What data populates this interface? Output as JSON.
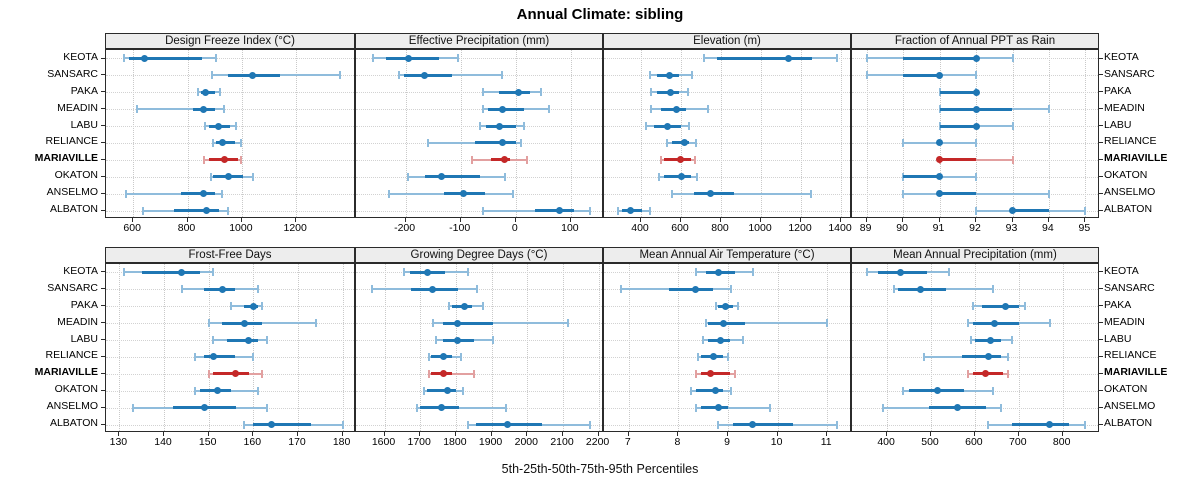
{
  "colors": {
    "blue": "#1f77b4",
    "blue_light": "#8fbcdc",
    "red": "#c42828",
    "red_light": "#e2a0a0",
    "strip_bg": "#ededed",
    "grid": "#c9c9c9",
    "border": "#2b2b2b"
  },
  "chart_data": {
    "type": "dotplot",
    "title": "Annual Climate: sibling",
    "caption": "5th-25th-50th-75th-95th Percentiles",
    "percentiles": [
      5,
      25,
      50,
      75,
      95
    ],
    "legend_position": "none",
    "grid": "dotted",
    "stations": [
      "KEOTA",
      "SANSARC",
      "PAKA",
      "MEADIN",
      "LABU",
      "RELIANCE",
      "MARIAVILLE",
      "OKATON",
      "ANSELMO",
      "ALBATON"
    ],
    "highlight_station": "MARIAVILLE",
    "panels": [
      {
        "title": "Design Freeze Index (°C)",
        "ticks": [
          600,
          800,
          1000,
          1200
        ],
        "xlim": [
          500,
          1420
        ],
        "values": [
          [
            565,
            585,
            640,
            855,
            905
          ],
          [
            890,
            950,
            1040,
            1140,
            1360
          ],
          [
            840,
            850,
            865,
            900,
            920
          ],
          [
            615,
            820,
            860,
            900,
            935
          ],
          [
            865,
            880,
            915,
            955,
            980
          ],
          [
            895,
            905,
            930,
            975,
            995
          ],
          [
            860,
            880,
            935,
            985,
            995
          ],
          [
            885,
            895,
            950,
            1005,
            1040
          ],
          [
            575,
            775,
            860,
            900,
            925
          ],
          [
            635,
            750,
            870,
            915,
            950
          ]
        ]
      },
      {
        "title": "Effective Precipitation (mm)",
        "ticks": [
          -200,
          -100,
          0,
          100
        ],
        "xlim": [
          -290,
          160
        ],
        "values": [
          [
            -260,
            -235,
            -195,
            -140,
            -105
          ],
          [
            -212,
            -203,
            -165,
            -115,
            -25
          ],
          [
            -60,
            -30,
            5,
            25,
            45
          ],
          [
            -60,
            -50,
            -25,
            15,
            60
          ],
          [
            -65,
            -55,
            -30,
            0,
            15
          ],
          [
            -160,
            -75,
            -25,
            0,
            10
          ],
          [
            -80,
            -45,
            -20,
            -10,
            20
          ],
          [
            -195,
            -165,
            -135,
            -65,
            -20
          ],
          [
            -230,
            -130,
            -95,
            -55,
            -5
          ],
          [
            -60,
            35,
            80,
            105,
            135
          ]
        ]
      },
      {
        "title": "Elevation (m)",
        "ticks": [
          400,
          600,
          800,
          1000,
          1200,
          1400
        ],
        "xlim": [
          215,
          1455
        ],
        "values": [
          [
            715,
            780,
            1135,
            1255,
            1380
          ],
          [
            445,
            480,
            540,
            590,
            655
          ],
          [
            450,
            480,
            545,
            590,
            635
          ],
          [
            450,
            500,
            575,
            625,
            735
          ],
          [
            425,
            465,
            530,
            600,
            640
          ],
          [
            530,
            555,
            615,
            640,
            675
          ],
          [
            500,
            515,
            595,
            650,
            670
          ],
          [
            490,
            515,
            600,
            650,
            680
          ],
          [
            555,
            665,
            745,
            865,
            1250
          ],
          [
            285,
            305,
            345,
            405,
            445
          ]
        ]
      },
      {
        "title": "Fraction of Annual PPT as Rain",
        "ticks": [
          89,
          90,
          91,
          92,
          93,
          94,
          95
        ],
        "xlim": [
          88.6,
          95.4
        ],
        "values": [
          [
            89,
            90,
            92,
            92,
            93
          ],
          [
            89,
            90,
            91,
            91,
            92
          ],
          [
            91,
            91,
            92,
            92,
            92
          ],
          [
            91,
            91,
            92,
            93,
            94
          ],
          [
            91,
            91,
            92,
            92,
            93
          ],
          [
            90,
            91,
            91,
            91,
            92
          ],
          [
            91,
            91,
            91,
            92,
            93
          ],
          [
            90,
            90,
            91,
            91,
            92
          ],
          [
            90,
            91,
            91,
            92,
            94
          ],
          [
            92,
            93,
            93,
            94,
            95
          ]
        ]
      },
      {
        "title": "Frost-Free Days",
        "ticks": [
          130,
          140,
          150,
          160,
          170,
          180
        ],
        "xlim": [
          127,
          183
        ],
        "values": [
          [
            131,
            135,
            144,
            148,
            151
          ],
          [
            144,
            149,
            153,
            156,
            161
          ],
          [
            155,
            158,
            160,
            161,
            162
          ],
          [
            150,
            153,
            158,
            162,
            174
          ],
          [
            151,
            154,
            159,
            161,
            163
          ],
          [
            147,
            149,
            151,
            156,
            160
          ],
          [
            150,
            151,
            156,
            159,
            162
          ],
          [
            147,
            148,
            152,
            155,
            161
          ],
          [
            133,
            142,
            149,
            156,
            163
          ],
          [
            158,
            160,
            164,
            173,
            180
          ]
        ]
      },
      {
        "title": "Growing Degree Days (°C)",
        "ticks": [
          1600,
          1700,
          1800,
          1900,
          2000,
          2100,
          2200
        ],
        "xlim": [
          1520,
          2215
        ],
        "values": [
          [
            1655,
            1670,
            1720,
            1770,
            1835
          ],
          [
            1565,
            1675,
            1735,
            1805,
            1860
          ],
          [
            1780,
            1790,
            1825,
            1845,
            1875
          ],
          [
            1735,
            1765,
            1805,
            1905,
            2115
          ],
          [
            1745,
            1765,
            1805,
            1850,
            1905
          ],
          [
            1725,
            1730,
            1765,
            1790,
            1815
          ],
          [
            1725,
            1730,
            1765,
            1790,
            1850
          ],
          [
            1710,
            1720,
            1775,
            1800,
            1820
          ],
          [
            1690,
            1700,
            1760,
            1810,
            1940
          ],
          [
            1835,
            1855,
            1945,
            2040,
            2175
          ]
        ]
      },
      {
        "title": "Mean Annual Air Temperature (°C)",
        "ticks": [
          7,
          8,
          9,
          10,
          11
        ],
        "xlim": [
          6.5,
          11.5
        ],
        "values": [
          [
            8.35,
            8.55,
            8.8,
            9.15,
            9.5
          ],
          [
            6.85,
            7.8,
            8.35,
            8.7,
            9.05
          ],
          [
            8.75,
            8.8,
            8.95,
            9.1,
            9.2
          ],
          [
            8.55,
            8.6,
            8.9,
            9.35,
            11.0
          ],
          [
            8.5,
            8.6,
            8.85,
            9.05,
            9.3
          ],
          [
            8.4,
            8.45,
            8.7,
            8.9,
            9.0
          ],
          [
            8.35,
            8.45,
            8.65,
            9.05,
            9.15
          ],
          [
            8.25,
            8.35,
            8.75,
            8.9,
            9.05
          ],
          [
            8.35,
            8.45,
            8.8,
            9.0,
            9.85
          ],
          [
            8.8,
            9.1,
            9.5,
            10.3,
            11.2
          ]
        ]
      },
      {
        "title": "Mean Annual Precipitation (mm)",
        "ticks": [
          400,
          500,
          600,
          700,
          800
        ],
        "xlim": [
          320,
          885
        ],
        "values": [
          [
            355,
            380,
            430,
            490,
            540
          ],
          [
            415,
            425,
            475,
            535,
            640
          ],
          [
            595,
            615,
            670,
            700,
            715
          ],
          [
            585,
            595,
            645,
            700,
            770
          ],
          [
            590,
            600,
            635,
            660,
            685
          ],
          [
            485,
            570,
            630,
            660,
            675
          ],
          [
            585,
            595,
            625,
            665,
            675
          ],
          [
            435,
            450,
            515,
            575,
            640
          ],
          [
            390,
            495,
            560,
            625,
            660
          ],
          [
            630,
            685,
            770,
            815,
            850
          ]
        ]
      }
    ]
  }
}
